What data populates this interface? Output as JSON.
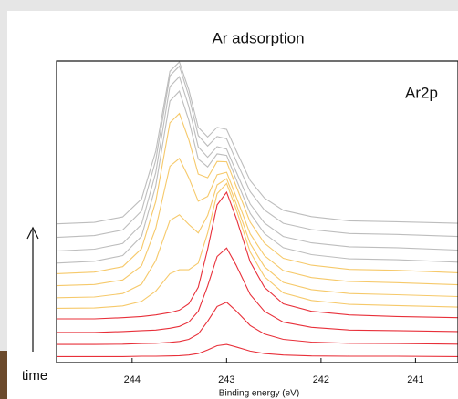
{
  "chart_data": {
    "type": "line",
    "title": "Ar adsorption",
    "annotation": "Ar2p",
    "side_label": "time",
    "xlabel": "Binding energy (eV)",
    "x": [
      244.8,
      244.4,
      244.1,
      243.9,
      243.75,
      243.6,
      243.5,
      243.4,
      243.3,
      243.2,
      243.1,
      243.0,
      242.9,
      242.75,
      242.6,
      242.4,
      242.1,
      241.7,
      241.2,
      240.55
    ],
    "xlim": [
      244.8,
      240.55
    ],
    "xticks": [
      244,
      243,
      242,
      241
    ],
    "ylim": [
      0,
      100
    ],
    "series": [
      {
        "color": "#e8303a",
        "values": [
          2,
          2,
          2,
          2.1,
          2.1,
          2.2,
          2.3,
          2.5,
          3,
          4.2,
          5.6,
          6,
          5.2,
          3.8,
          3,
          2.5,
          2.2,
          2.1,
          2.1,
          2
        ]
      },
      {
        "color": "#e8303a",
        "values": [
          6,
          6,
          6.1,
          6.3,
          6.4,
          6.7,
          7,
          7.7,
          9.5,
          13.7,
          18.6,
          20,
          17.2,
          12.3,
          9.5,
          7.7,
          6.8,
          6.4,
          6.3,
          6.1
        ]
      },
      {
        "color": "#e8303a",
        "values": [
          10,
          10,
          10.3,
          10.6,
          10.8,
          11.4,
          12,
          13.4,
          17,
          25.4,
          35.2,
          38,
          32.4,
          22.6,
          17,
          13.4,
          11.7,
          10.8,
          10.6,
          10.3
        ]
      },
      {
        "color": "#e8303a",
        "values": [
          14.5,
          14.5,
          14.9,
          15.3,
          15.8,
          16.6,
          17.4,
          19.5,
          25,
          37.6,
          52.3,
          56.5,
          48.1,
          33.4,
          25,
          19.5,
          17,
          15.8,
          15.3,
          14.9
        ]
      },
      {
        "color": "#f6c96a",
        "values": [
          18,
          18.1,
          18.8,
          20.3,
          23.7,
          29.5,
          30.8,
          30.8,
          33,
          43,
          56,
          59.4,
          51,
          36.7,
          28.5,
          23.1,
          20.6,
          19.3,
          18.9,
          18.4
        ]
      },
      {
        "color": "#f6c96a",
        "values": [
          21.5,
          21.75,
          22.9,
          26,
          33.8,
          47.1,
          49,
          45.8,
          43,
          48.8,
          58.9,
          61,
          52.8,
          39.5,
          31.8,
          26.6,
          24.2,
          22.9,
          22.5,
          21.9
        ]
      },
      {
        "color": "#f6c96a",
        "values": [
          25.5,
          25.9,
          27.4,
          32.1,
          44.5,
          65.1,
          67.7,
          61.3,
          53.5,
          55.1,
          62.3,
          63.1,
          55.1,
          42.7,
          35.5,
          30.5,
          28.2,
          26.9,
          26.5,
          25.8
        ]
      },
      {
        "color": "#f6c96a",
        "values": [
          29.5,
          30,
          31.8,
          37.8,
          53.4,
          79.5,
          82.6,
          73.9,
          62.5,
          61.3,
          66.7,
          66.6,
          58.6,
          46.6,
          39.6,
          34.6,
          32.3,
          30.9,
          30.6,
          29.8
        ]
      },
      {
        "color": "#bdbdbd",
        "values": [
          33,
          33.6,
          35.5,
          41.9,
          58.6,
          86.7,
          90,
          80.4,
          67.5,
          64.9,
          69.2,
          68.7,
          60.9,
          49.5,
          42.8,
          38.1,
          35.8,
          34.4,
          34.1,
          33.3
        ]
      },
      {
        "color": "#bdbdbd",
        "values": [
          37,
          37.6,
          39.5,
          45.9,
          63,
          91.5,
          94.8,
          84.9,
          71.5,
          68.1,
          71.6,
          70.8,
          63.4,
          52.6,
          46.3,
          41.8,
          39.7,
          38.4,
          38.1,
          37.3
        ]
      },
      {
        "color": "#bdbdbd",
        "values": [
          41.5,
          42.1,
          44,
          50.3,
          67.1,
          95.1,
          98.3,
          88.5,
          75.3,
          71.8,
          75,
          74.2,
          67,
          56.7,
          50.6,
          46.2,
          44.1,
          42.8,
          42.5,
          41.8
        ]
      },
      {
        "color": "#bdbdbd",
        "values": [
          46,
          46.5,
          48.3,
          54.3,
          70.1,
          96.6,
          99.7,
          90.5,
          78,
          74.8,
          78,
          77.3,
          70.4,
          60.4,
          54.6,
          50.5,
          48.4,
          47,
          46.7,
          46.2
        ]
      }
    ]
  }
}
